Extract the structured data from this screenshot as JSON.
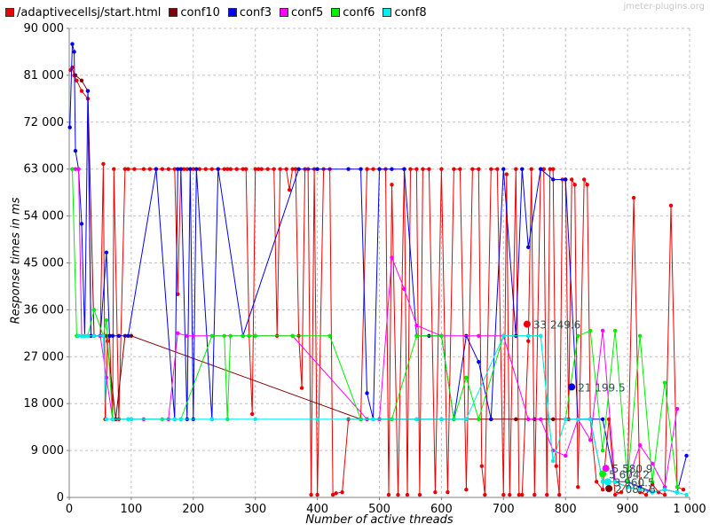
{
  "watermark": "jmeter-plugins.org",
  "chart_data": {
    "type": "line",
    "xlabel": "Number of active threads",
    "ylabel": "Response times in ms",
    "xlim": [
      0,
      1000
    ],
    "ylim": [
      0,
      90000
    ],
    "xticks": [
      0,
      100,
      200,
      300,
      400,
      500,
      600,
      700,
      800,
      900,
      1000
    ],
    "xtick_labels": [
      "0",
      "100",
      "200",
      "300",
      "400",
      "500",
      "600",
      "700",
      "800",
      "900",
      "1 000"
    ],
    "yticks": [
      0,
      9000,
      18000,
      27000,
      36000,
      45000,
      54000,
      63000,
      72000,
      81000,
      90000
    ],
    "ytick_labels": [
      "0",
      "9 000",
      "18 000",
      "27 000",
      "36 000",
      "45 000",
      "54 000",
      "63 000",
      "72 000",
      "81 000",
      "90 000"
    ],
    "grid": true,
    "legend_position": "top-left",
    "series": [
      {
        "name": "/adaptivecellsj/start.html",
        "color": "#ee0000",
        "x": [
          2,
          5,
          8,
          12,
          20,
          30,
          35,
          40,
          50,
          55,
          58,
          62,
          65,
          70,
          72,
          80,
          90,
          95,
          105,
          120,
          130,
          140,
          150,
          160,
          170,
          175,
          180,
          185,
          190,
          200,
          210,
          220,
          230,
          240,
          250,
          255,
          260,
          270,
          280,
          285,
          290,
          295,
          300,
          305,
          310,
          320,
          330,
          335,
          340,
          350,
          355,
          360,
          365,
          370,
          375,
          380,
          385,
          390,
          395,
          400,
          410,
          420,
          425,
          430,
          440,
          450,
          470,
          480,
          490,
          510,
          515,
          520,
          530,
          540,
          545,
          550,
          560,
          565,
          570,
          580,
          590,
          600,
          610,
          620,
          630,
          640,
          650,
          660,
          665,
          670,
          680,
          690,
          700,
          705,
          710,
          720,
          725,
          730,
          740,
          745,
          750,
          760,
          765,
          770,
          775,
          780,
          785,
          790,
          795,
          800,
          805,
          810,
          815,
          820,
          830,
          835,
          840,
          850,
          860,
          870,
          880,
          890,
          900,
          910,
          920,
          930,
          940,
          950,
          960,
          970,
          980,
          990
        ],
        "y": [
          82000,
          82500,
          81000,
          80000,
          78000,
          76500,
          31000,
          31000,
          31000,
          64000,
          15000,
          30000,
          31000,
          15000,
          63000,
          15000,
          63000,
          63000,
          63000,
          63000,
          63000,
          63000,
          63000,
          63000,
          63000,
          39000,
          63000,
          63000,
          63000,
          63000,
          63000,
          63000,
          63000,
          63000,
          63000,
          63000,
          63000,
          63000,
          63000,
          63000,
          31000,
          16000,
          63000,
          63000,
          63000,
          63000,
          63000,
          31000,
          63000,
          63000,
          59000,
          63000,
          63000,
          31000,
          21000,
          63000,
          63000,
          500,
          63000,
          500,
          63000,
          63000,
          500,
          800,
          1000,
          15000,
          15000,
          63000,
          63000,
          63000,
          500,
          60000,
          500,
          63000,
          500,
          63000,
          63000,
          500,
          63000,
          63000,
          1000,
          63000,
          1000,
          63000,
          63000,
          1500,
          63000,
          63000,
          6000,
          500,
          63000,
          63000,
          500,
          62000,
          500,
          63000,
          500,
          500,
          30000,
          63000,
          500,
          63000,
          63000,
          500,
          63000,
          63000,
          6000,
          500,
          61000,
          61000,
          15000,
          61000,
          60000,
          2000,
          61000,
          60000,
          15000,
          3000,
          1500,
          15000,
          500,
          1000,
          3000,
          57500,
          1000,
          500,
          2500,
          1000,
          500,
          56000,
          2000,
          1500
        ]
      },
      {
        "name": "conf10",
        "color": "#800000",
        "x": [
          10,
          20,
          30,
          40,
          60,
          75,
          90,
          100,
          470,
          480,
          490,
          500,
          560,
          600,
          640,
          680,
          720,
          750,
          780,
          800,
          820,
          840,
          860,
          880,
          900,
          920,
          940,
          960,
          980
        ],
        "y": [
          81000,
          80000,
          78000,
          31000,
          31000,
          15000,
          31000,
          31000,
          15000,
          15000,
          15000,
          15000,
          15000,
          15000,
          15000,
          15000,
          15000,
          15000,
          15000,
          15000,
          15000,
          15000,
          3000,
          3000,
          2000,
          1500,
          1000,
          1500,
          1000
        ]
      },
      {
        "name": "conf3",
        "color": "#0000ee",
        "x": [
          1,
          5,
          8,
          10,
          15,
          20,
          25,
          30,
          35,
          50,
          60,
          65,
          70,
          80,
          95,
          140,
          170,
          175,
          180,
          190,
          195,
          200,
          205,
          230,
          240,
          280,
          370,
          400,
          450,
          470,
          480,
          490,
          500,
          520,
          540,
          560,
          580,
          600,
          620,
          640,
          660,
          680,
          700,
          720,
          730,
          740,
          760,
          780,
          800,
          820,
          840,
          860,
          880,
          900,
          920,
          940,
          960,
          980,
          995
        ],
        "y": [
          71000,
          87000,
          85500,
          66500,
          63000,
          52500,
          31000,
          78000,
          31000,
          31000,
          47000,
          31000,
          31000,
          31000,
          31000,
          63000,
          15000,
          63000,
          63000,
          15000,
          63000,
          15000,
          63000,
          15000,
          63000,
          31000,
          63000,
          63000,
          63000,
          63000,
          20000,
          15000,
          63000,
          63000,
          63000,
          31000,
          31000,
          31000,
          15000,
          31000,
          26000,
          15000,
          63000,
          31000,
          63000,
          48000,
          63000,
          61000,
          61000,
          15000,
          15000,
          15000,
          3000,
          3000,
          2000,
          1000,
          1500,
          1000,
          8000
        ]
      },
      {
        "name": "conf5",
        "color": "#ff00ff",
        "x": [
          5,
          10,
          15,
          20,
          30,
          40,
          50,
          60,
          70,
          120,
          160,
          175,
          190,
          200,
          300,
          360,
          480,
          500,
          520,
          540,
          560,
          600,
          660,
          700,
          740,
          760,
          780,
          800,
          820,
          840,
          860,
          880,
          900,
          920,
          940,
          960,
          980
        ],
        "y": [
          63000,
          63000,
          63000,
          31000,
          31000,
          31000,
          31000,
          23000,
          15000,
          15000,
          15000,
          31500,
          31000,
          31000,
          31000,
          31000,
          15000,
          15000,
          46000,
          40000,
          33000,
          31000,
          31000,
          31000,
          15000,
          15000,
          9000,
          8000,
          15000,
          11000,
          32000,
          3000,
          3000,
          10000,
          6500,
          2000,
          17000
        ]
      },
      {
        "name": "conf6",
        "color": "#00ee00",
        "x": [
          5,
          12,
          20,
          25,
          30,
          40,
          55,
          60,
          70,
          95,
          100,
          150,
          180,
          230,
          250,
          255,
          260,
          280,
          290,
          300,
          360,
          420,
          470,
          520,
          560,
          600,
          620,
          640,
          660,
          700,
          740,
          760,
          780,
          800,
          820,
          840,
          860,
          880,
          900,
          920,
          940,
          960,
          980
        ],
        "y": [
          63000,
          31000,
          31000,
          31000,
          31000,
          36000,
          31000,
          34000,
          15000,
          15000,
          15000,
          15000,
          15000,
          31000,
          31000,
          15000,
          31000,
          31000,
          31000,
          31000,
          31000,
          31000,
          15000,
          15000,
          31000,
          31000,
          15000,
          23000,
          15000,
          31000,
          31000,
          31000,
          7000,
          15000,
          31000,
          32000,
          9000,
          32000,
          3000,
          31000,
          3000,
          22000,
          2000
        ]
      },
      {
        "name": "conf8",
        "color": "#00eeee",
        "x": [
          15,
          20,
          25,
          30,
          40,
          55,
          60,
          70,
          95,
          100,
          170,
          180,
          230,
          300,
          400,
          490,
          560,
          600,
          640,
          700,
          740,
          760,
          780,
          800,
          820,
          840,
          860,
          880,
          900,
          920,
          940,
          960,
          980,
          995
        ],
        "y": [
          31000,
          31000,
          31000,
          31000,
          31000,
          31000,
          15000,
          15000,
          15000,
          15000,
          15000,
          15000,
          15000,
          15000,
          15000,
          15000,
          15000,
          15000,
          15000,
          31000,
          31000,
          31000,
          7000,
          15000,
          15000,
          15000,
          3000,
          3000,
          2000,
          1500,
          1000,
          1500,
          1000,
          500
        ]
      }
    ],
    "annotations": [
      {
        "text": "33 249.6",
        "x": 738,
        "y": 33249.6,
        "color": "#ee0000"
      },
      {
        "text": "21 199.5",
        "x": 810,
        "y": 21199.5,
        "color": "#0000ee"
      },
      {
        "text": "5 580.9",
        "x": 865,
        "y": 5580.9,
        "color": "#ff00ff"
      },
      {
        "text": "5 604.2",
        "x": 860,
        "y": 4500,
        "color": "#00ee00"
      },
      {
        "text": "3 960.5",
        "x": 868,
        "y": 3000,
        "color": "#00eeee"
      },
      {
        "text": "2 085.8",
        "x": 870,
        "y": 1700,
        "color": "#800000"
      }
    ]
  }
}
